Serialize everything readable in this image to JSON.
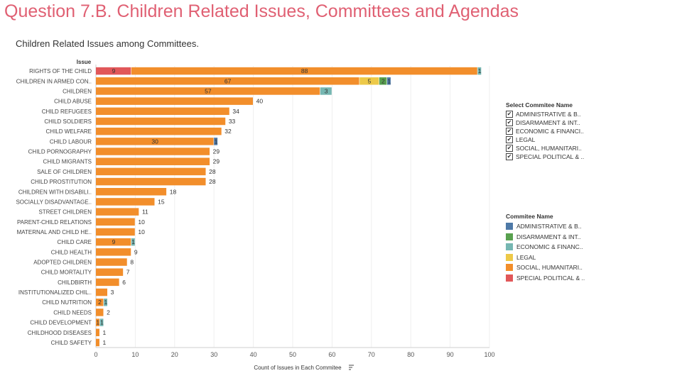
{
  "page": {
    "title": "Question 7.B. Children Related Issues, Committees and Agendas",
    "subtitle": "Children Related Issues among Committees."
  },
  "filter_legend": {
    "title": "Select Commitee Name",
    "items": [
      {
        "label": "ADMINISTRATIVE & B..",
        "checked": true
      },
      {
        "label": "DISARMAMENT & INT..",
        "checked": true
      },
      {
        "label": "ECONOMIC & FINANCI..",
        "checked": true
      },
      {
        "label": "LEGAL",
        "checked": true
      },
      {
        "label": "SOCIAL, HUMANITARI..",
        "checked": true
      },
      {
        "label": "SPECIAL POLITICAL & ..",
        "checked": true
      }
    ],
    "check_glyph": "✔"
  },
  "color_legend": {
    "title": "Commitee Name",
    "items": [
      {
        "label": "ADMINISTRATIVE & B..",
        "color": "#4e79a7"
      },
      {
        "label": "DISARMAMENT & INT..",
        "color": "#59a14f"
      },
      {
        "label": "ECONOMIC & FINANC..",
        "color": "#76b7b2"
      },
      {
        "label": "LEGAL",
        "color": "#edc948"
      },
      {
        "label": "SOCIAL, HUMANITARI..",
        "color": "#f28e2b"
      },
      {
        "label": "SPECIAL POLITICAL & ..",
        "color": "#e15759"
      }
    ]
  },
  "chart_data": {
    "type": "bar",
    "orientation": "horizontal",
    "stacked": true,
    "ylabel": "Issue",
    "xlabel": "Count of Issues in Each Commitee",
    "xlim": [
      0,
      100
    ],
    "xticks": [
      0,
      10,
      20,
      30,
      40,
      50,
      60,
      70,
      80,
      90,
      100
    ],
    "categories": [
      "RIGHTS OF THE CHILD",
      "CHILDREN IN ARMED CON..",
      "CHILDREN",
      "CHILD ABUSE",
      "CHILD REFUGEES",
      "CHILD SOLDIERS",
      "CHILD WELFARE",
      "CHILD LABOUR",
      "CHILD PORNOGRAPHY",
      "CHILD MIGRANTS",
      "SALE OF CHILDREN",
      "CHILD PROSTITUTION",
      "CHILDREN WITH DISABILI..",
      "SOCIALLY DISADVANTAGE..",
      "STREET CHILDREN",
      "PARENT-CHILD RELATIONS",
      "MATERNAL AND CHILD HE..",
      "CHILD CARE",
      "CHILD HEALTH",
      "ADOPTED CHILDREN",
      "CHILD MORTALITY",
      "CHILDBIRTH",
      "INSTITUTIONALIZED CHIL..",
      "CHILD NUTRITION",
      "CHILD NEEDS",
      "CHILD DEVELOPMENT",
      "CHILDHOOD DISEASES",
      "CHILD SAFETY"
    ],
    "series": [
      {
        "name": "SPECIAL POLITICAL & ..",
        "color": "#e15759",
        "values": [
          9,
          0,
          0,
          0,
          0,
          0,
          0,
          0,
          0,
          0,
          0,
          0,
          0,
          0,
          0,
          0,
          0,
          0,
          0,
          0,
          0,
          0,
          0,
          0,
          0,
          0,
          0,
          0
        ]
      },
      {
        "name": "SOCIAL, HUMANITARI..",
        "color": "#f28e2b",
        "values": [
          88,
          67,
          57,
          40,
          34,
          33,
          32,
          30,
          29,
          29,
          28,
          28,
          18,
          15,
          11,
          10,
          10,
          9,
          9,
          8,
          7,
          6,
          3,
          2,
          2,
          1,
          1,
          1
        ]
      },
      {
        "name": "LEGAL",
        "color": "#edc948",
        "values": [
          0,
          5,
          0,
          0,
          0,
          0,
          0,
          0,
          0,
          0,
          0,
          0,
          0,
          0,
          0,
          0,
          0,
          0,
          0,
          0,
          0,
          0,
          0,
          0,
          0,
          0,
          0,
          0
        ]
      },
      {
        "name": "ECONOMIC & FINANC..",
        "color": "#76b7b2",
        "values": [
          1,
          0,
          3,
          0,
          0,
          0,
          0,
          0,
          0,
          0,
          0,
          0,
          0,
          0,
          0,
          0,
          0,
          1,
          0,
          0,
          0,
          0,
          0,
          1,
          0,
          1,
          0,
          0
        ]
      },
      {
        "name": "DISARMAMENT & INT..",
        "color": "#59a14f",
        "values": [
          0,
          2,
          0,
          0,
          0,
          0,
          0,
          0,
          0,
          0,
          0,
          0,
          0,
          0,
          0,
          0,
          0,
          0,
          0,
          0,
          0,
          0,
          0,
          0,
          0,
          0,
          0,
          0
        ]
      },
      {
        "name": "ADMINISTRATIVE & B..",
        "color": "#4e79a7",
        "values": [
          0,
          1,
          0,
          0,
          0,
          0,
          0,
          1,
          0,
          0,
          0,
          0,
          0,
          0,
          0,
          0,
          0,
          0,
          0,
          0,
          0,
          0,
          0,
          0,
          0,
          0,
          0,
          0
        ]
      }
    ]
  }
}
